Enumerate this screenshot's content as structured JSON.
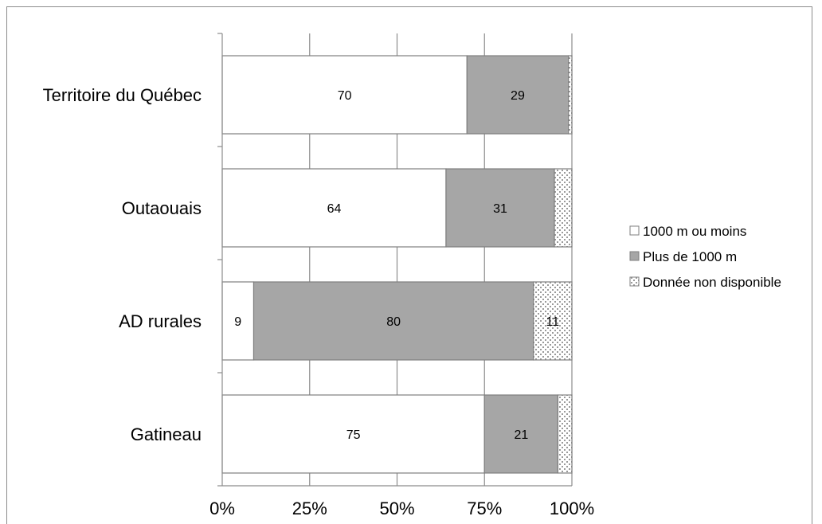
{
  "chart_data": {
    "type": "bar",
    "orientation": "horizontal",
    "stacked": "percent",
    "categories": [
      "Territoire du Québec",
      "Outaouais",
      "AD rurales",
      "Gatineau"
    ],
    "series": [
      {
        "name": "1000 m ou moins",
        "values": [
          70,
          64,
          9,
          75
        ],
        "labels": [
          "70",
          "64",
          "9",
          "75"
        ],
        "color": "#ffffff",
        "pattern": "none"
      },
      {
        "name": "Plus de 1000 m",
        "values": [
          29,
          31,
          80,
          21
        ],
        "labels": [
          "29",
          "31",
          "80",
          "21"
        ],
        "color": "#a6a6a6",
        "pattern": "none"
      },
      {
        "name": "Donnée non disponible",
        "values": [
          1,
          5,
          11,
          4
        ],
        "labels": [
          "",
          "",
          "11",
          ""
        ],
        "color": "#ffffff",
        "pattern": "dots"
      }
    ],
    "xticks": [
      "0%",
      "25%",
      "50%",
      "75%",
      "100%"
    ],
    "xlim": [
      0,
      100
    ],
    "grid": "vertical",
    "legend": "right",
    "title": "",
    "xlabel": "",
    "ylabel": ""
  }
}
